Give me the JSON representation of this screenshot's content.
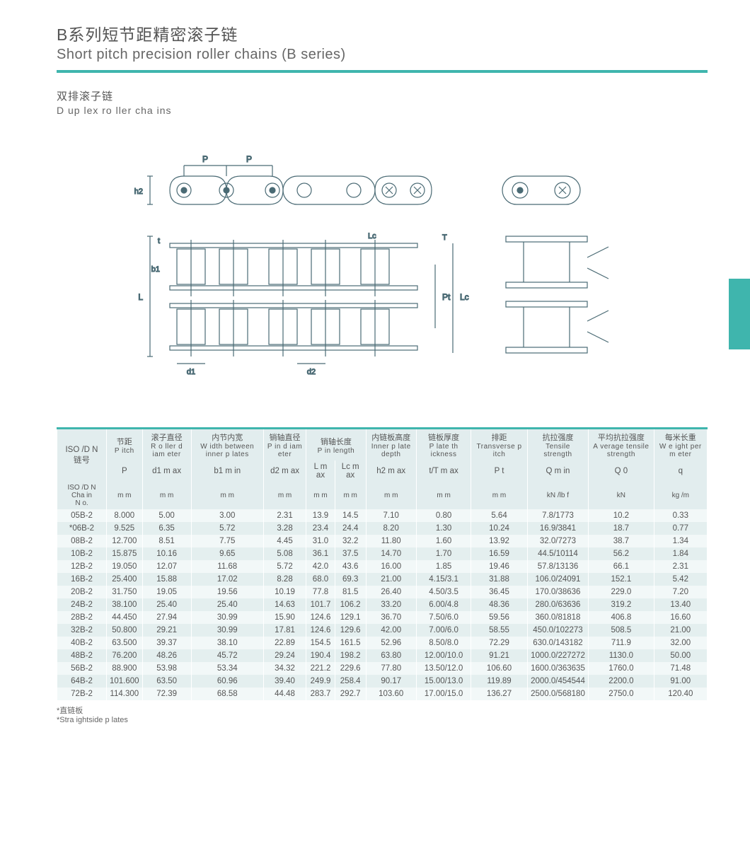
{
  "title_cn": "B系列短节距精密滚子链",
  "title_en": "Short pitch precision roller chains (B series)",
  "subtitle_cn": "双排滚子链",
  "subtitle_en": "D up lex ro ller cha ins",
  "colors": {
    "accent": "#3fb5ad",
    "band_light": "#f2f8f8",
    "band_dark": "#e4efef",
    "header_bg": "#e2edee"
  },
  "diagram_labels": [
    "P",
    "P",
    "h2",
    "t",
    "b1",
    "L",
    "d1",
    "d2",
    "Lc",
    "T",
    "Pt",
    "Lc"
  ],
  "headers": {
    "left_col": {
      "top_cn": "ISO /D N",
      "top_en": "链号",
      "mid": "ISO /D N",
      "mid2": "Cha in",
      "mid3": "N o."
    },
    "groups": [
      {
        "cn": "节距",
        "en": "P itch",
        "sym": "P",
        "unit": "m m"
      },
      {
        "cn": "滚子直径",
        "en": "R o ller\nd iam eter",
        "sym": "d1\nm ax",
        "unit": "m m"
      },
      {
        "cn": "内节内宽",
        "en": "W idth\nbetween\ninner p lates",
        "sym": "b1\nm in",
        "unit": "m m"
      },
      {
        "cn": "销轴直径",
        "en": "P in\nd iam eter",
        "sym": "d2\nm ax",
        "unit": "m m"
      },
      {
        "cn": "销轴长度",
        "en": "P in\nlength",
        "sym_l": "L\nm ax",
        "sym_r": "Lc\nm ax",
        "unit": "m m"
      },
      {
        "cn": "内链板高度",
        "en": "Inner\np late\ndepth",
        "sym": "h2\nm ax",
        "unit": "m m"
      },
      {
        "cn": "链板厚度",
        "en": "P late\nth ickness",
        "sym": "t/T\nm ax",
        "unit": "m m"
      },
      {
        "cn": "排距",
        "en": "Transverse\np itch",
        "sym": "P t",
        "unit": "m m"
      },
      {
        "cn": "抗拉强度",
        "en": "Tensile\nstrength",
        "sym": "Q\nm in",
        "unit": "kN /lb f"
      },
      {
        "cn": "平均抗拉强度",
        "en": "A verage\ntensile\nstrength",
        "sym": "Q 0",
        "unit": "kN"
      },
      {
        "cn": "每米长重",
        "en": "W e ight\nper\nm eter",
        "sym": "q",
        "unit": "kg /m"
      }
    ]
  },
  "rows": [
    [
      "05B-2",
      "8.000",
      "5.00",
      "3.00",
      "2.31",
      "13.9",
      "14.5",
      "7.10",
      "0.80",
      "5.64",
      "7.8/1773",
      "10.2",
      "0.33"
    ],
    [
      "*06B-2",
      "9.525",
      "6.35",
      "5.72",
      "3.28",
      "23.4",
      "24.4",
      "8.20",
      "1.30",
      "10.24",
      "16.9/3841",
      "18.7",
      "0.77"
    ],
    [
      "08B-2",
      "12.700",
      "8.51",
      "7.75",
      "4.45",
      "31.0",
      "32.2",
      "11.80",
      "1.60",
      "13.92",
      "32.0/7273",
      "38.7",
      "1.34"
    ],
    [
      "10B-2",
      "15.875",
      "10.16",
      "9.65",
      "5.08",
      "36.1",
      "37.5",
      "14.70",
      "1.70",
      "16.59",
      "44.5/10114",
      "56.2",
      "1.84"
    ],
    [
      "12B-2",
      "19.050",
      "12.07",
      "11.68",
      "5.72",
      "42.0",
      "43.6",
      "16.00",
      "1.85",
      "19.46",
      "57.8/13136",
      "66.1",
      "2.31"
    ],
    [
      "16B-2",
      "25.400",
      "15.88",
      "17.02",
      "8.28",
      "68.0",
      "69.3",
      "21.00",
      "4.15/3.1",
      "31.88",
      "106.0/24091",
      "152.1",
      "5.42"
    ],
    [
      "20B-2",
      "31.750",
      "19.05",
      "19.56",
      "10.19",
      "77.8",
      "81.5",
      "26.40",
      "4.50/3.5",
      "36.45",
      "170.0/38636",
      "229.0",
      "7.20"
    ],
    [
      "24B-2",
      "38.100",
      "25.40",
      "25.40",
      "14.63",
      "101.7",
      "106.2",
      "33.20",
      "6.00/4.8",
      "48.36",
      "280.0/63636",
      "319.2",
      "13.40"
    ],
    [
      "28B-2",
      "44.450",
      "27.94",
      "30.99",
      "15.90",
      "124.6",
      "129.1",
      "36.70",
      "7.50/6.0",
      "59.56",
      "360.0/81818",
      "406.8",
      "16.60"
    ],
    [
      "32B-2",
      "50.800",
      "29.21",
      "30.99",
      "17.81",
      "124.6",
      "129.6",
      "42.00",
      "7.00/6.0",
      "58.55",
      "450.0/102273",
      "508.5",
      "21.00"
    ],
    [
      "40B-2",
      "63.500",
      "39.37",
      "38.10",
      "22.89",
      "154.5",
      "161.5",
      "52.96",
      "8.50/8.0",
      "72.29",
      "630.0/143182",
      "711.9",
      "32.00"
    ],
    [
      "48B-2",
      "76.200",
      "48.26",
      "45.72",
      "29.24",
      "190.4",
      "198.2",
      "63.80",
      "12.00/10.0",
      "91.21",
      "1000.0/227272",
      "1130.0",
      "50.00"
    ],
    [
      "56B-2",
      "88.900",
      "53.98",
      "53.34",
      "34.32",
      "221.2",
      "229.6",
      "77.80",
      "13.50/12.0",
      "106.60",
      "1600.0/363635",
      "1760.0",
      "71.48"
    ],
    [
      "64B-2",
      "101.600",
      "63.50",
      "60.96",
      "39.40",
      "249.9",
      "258.4",
      "90.17",
      "15.00/13.0",
      "119.89",
      "2000.0/454544",
      "2200.0",
      "91.00"
    ],
    [
      "72B-2",
      "114.300",
      "72.39",
      "68.58",
      "44.48",
      "283.7",
      "292.7",
      "103.60",
      "17.00/15.0",
      "136.27",
      "2500.0/568180",
      "2750.0",
      "120.40"
    ]
  ],
  "footnote_cn": "*直链板",
  "footnote_en": "*Stra ightside p lates"
}
